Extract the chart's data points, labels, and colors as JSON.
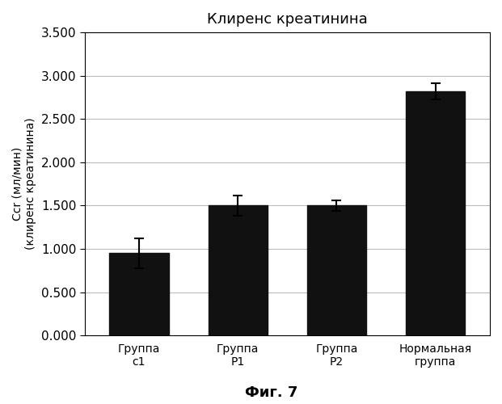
{
  "title": "Клиренс креатинина",
  "xlabel_bottom": "Фиг. 7",
  "ylabel_line1": "Ссr (мл/мин)",
  "ylabel_line2": "(клиренс креатинина)",
  "categories": [
    "Группа\nс1",
    "Группа\nP1",
    "Группа\nP2",
    "Нормальная\nгруппа"
  ],
  "values": [
    0.95,
    1.5,
    1.5,
    2.82
  ],
  "errors": [
    0.175,
    0.115,
    0.06,
    0.095
  ],
  "bar_color": "#111111",
  "bar_width": 0.6,
  "ylim": [
    0.0,
    3.5
  ],
  "yticks": [
    0.0,
    0.5,
    1.0,
    1.5,
    2.0,
    2.5,
    3.0,
    3.5
  ],
  "ytick_labels": [
    "0.000",
    "0.500",
    "1.000",
    "1.500",
    "2.000",
    "2.500",
    "3.000",
    "3.500"
  ],
  "grid_color": "#bbbbbb",
  "background_color": "#ffffff",
  "title_fontsize": 13,
  "label_fontsize": 10,
  "tick_fontsize": 11,
  "xtick_fontsize": 10,
  "caption_fontsize": 13
}
